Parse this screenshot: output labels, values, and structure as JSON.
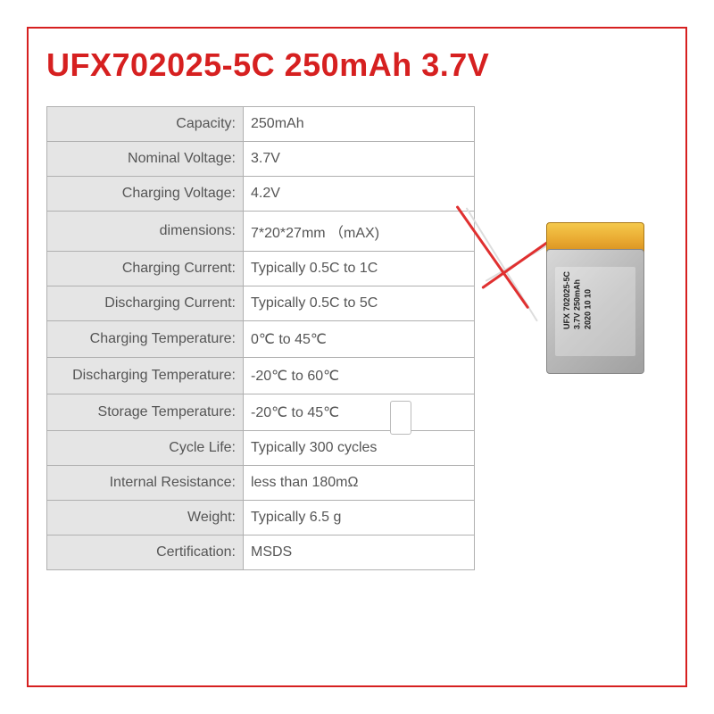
{
  "title": "UFX702025-5C 250mAh 3.7V",
  "colors": {
    "accent": "#d62020",
    "border": "#b0b0b0",
    "label_bg": "#e5e5e5",
    "text": "#555555"
  },
  "specs": [
    {
      "label": "Capacity:",
      "value": "250mAh"
    },
    {
      "label": "Nominal Voltage:",
      "value": "3.7V"
    },
    {
      "label": "Charging Voltage:",
      "value": "4.2V"
    },
    {
      "label": "dimensions:",
      "value": "7*20*27mm （mAX)"
    },
    {
      "label": "Charging Current:",
      "value": "Typically 0.5C to 1C"
    },
    {
      "label": "Discharging Current:",
      "value": "Typically 0.5C to 5C"
    },
    {
      "label": "Charging Temperature:",
      "value": "0℃ to 45℃"
    },
    {
      "label": "Discharging Temperature:",
      "value": "-20℃ to 60℃"
    },
    {
      "label": "Storage Temperature:",
      "value": "-20℃ to 45℃"
    },
    {
      "label": "Cycle Life:",
      "value": "Typically 300 cycles"
    },
    {
      "label": "Internal Resistance:",
      "value": "less than 180mΩ"
    },
    {
      "label": "Weight:",
      "value": "Typically 6.5 g"
    },
    {
      "label": "Certification:",
      "value": "MSDS"
    }
  ],
  "battery_label": {
    "line1": "UFX 702025-5C",
    "line2": "3.7V 250mAh",
    "line3": "2020 10 10"
  }
}
